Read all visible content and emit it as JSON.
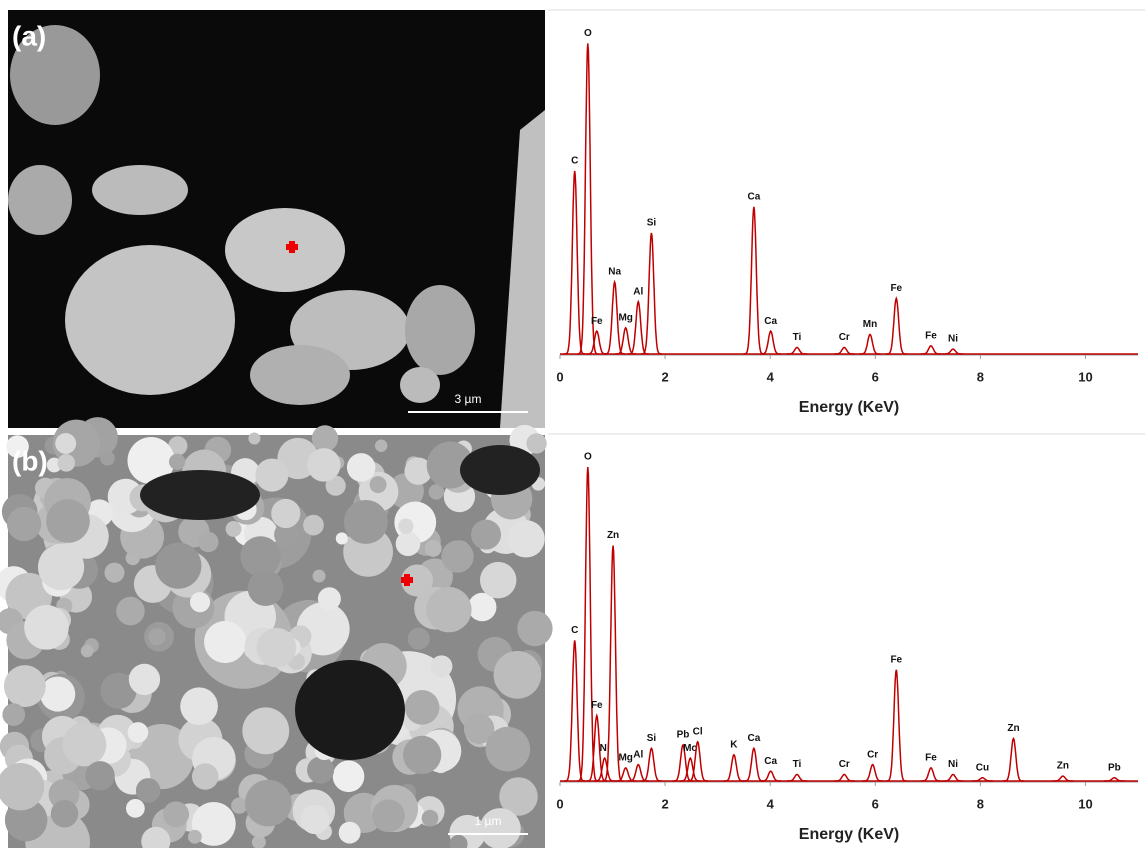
{
  "chart_data": [
    {
      "type": "spectrum",
      "panel_label": "(a)",
      "scale_bar": "3 µm",
      "xlabel": "Energy (KeV)",
      "xlim": [
        0,
        11
      ],
      "xticks": [
        0,
        2,
        4,
        6,
        8,
        10
      ],
      "ylim": [
        0,
        100
      ],
      "color": "#c00000",
      "peaks": [
        {
          "label": "C",
          "x": 0.28,
          "value": 56
        },
        {
          "label": "O",
          "x": 0.53,
          "value": 95
        },
        {
          "label": "Fe",
          "x": 0.7,
          "value": 7
        },
        {
          "label": "Na",
          "x": 1.04,
          "value": 22
        },
        {
          "label": "Mg",
          "x": 1.25,
          "value": 8
        },
        {
          "label": "Al",
          "x": 1.49,
          "value": 16
        },
        {
          "label": "Si",
          "x": 1.74,
          "value": 37
        },
        {
          "label": "Ca",
          "x": 3.69,
          "value": 45
        },
        {
          "label": "Ca",
          "x": 4.01,
          "value": 7
        },
        {
          "label": "Ti",
          "x": 4.51,
          "value": 2
        },
        {
          "label": "Cr",
          "x": 5.41,
          "value": 2
        },
        {
          "label": "Mn",
          "x": 5.9,
          "value": 6
        },
        {
          "label": "Fe",
          "x": 6.4,
          "value": 17
        },
        {
          "label": "Fe",
          "x": 7.06,
          "value": 2.5
        },
        {
          "label": "Ni",
          "x": 7.48,
          "value": 1.5
        }
      ]
    },
    {
      "type": "spectrum",
      "panel_label": "(b)",
      "scale_bar": "1 µm",
      "xlabel": "Energy (KeV)",
      "xlim": [
        0,
        11
      ],
      "xticks": [
        0,
        2,
        4,
        6,
        8,
        10
      ],
      "ylim": [
        0,
        100
      ],
      "color": "#c00000",
      "peaks": [
        {
          "label": "C",
          "x": 0.28,
          "value": 43
        },
        {
          "label": "O",
          "x": 0.53,
          "value": 96
        },
        {
          "label": "Fe",
          "x": 0.7,
          "value": 20
        },
        {
          "label": "Ni",
          "x": 0.85,
          "value": 7
        },
        {
          "label": "Zn",
          "x": 1.01,
          "value": 72
        },
        {
          "label": "Mg",
          "x": 1.25,
          "value": 4
        },
        {
          "label": "Al",
          "x": 1.49,
          "value": 5
        },
        {
          "label": "Si",
          "x": 1.74,
          "value": 10
        },
        {
          "label": "Pb",
          "x": 2.34,
          "value": 11
        },
        {
          "label": "Mo",
          "x": 2.48,
          "value": 7
        },
        {
          "label": "Cl",
          "x": 2.62,
          "value": 12
        },
        {
          "label": "K",
          "x": 3.31,
          "value": 8
        },
        {
          "label": "Ca",
          "x": 3.69,
          "value": 10
        },
        {
          "label": "Ca",
          "x": 4.01,
          "value": 3
        },
        {
          "label": "Ti",
          "x": 4.51,
          "value": 2
        },
        {
          "label": "Cr",
          "x": 5.41,
          "value": 2
        },
        {
          "label": "Cr",
          "x": 5.95,
          "value": 5
        },
        {
          "label": "Fe",
          "x": 6.4,
          "value": 34
        },
        {
          "label": "Fe",
          "x": 7.06,
          "value": 4
        },
        {
          "label": "Ni",
          "x": 7.48,
          "value": 2
        },
        {
          "label": "Cu",
          "x": 8.04,
          "value": 1
        },
        {
          "label": "Zn",
          "x": 8.63,
          "value": 13
        },
        {
          "label": "Zn",
          "x": 9.57,
          "value": 1.5
        },
        {
          "label": "Pb",
          "x": 10.55,
          "value": 1
        }
      ]
    }
  ]
}
